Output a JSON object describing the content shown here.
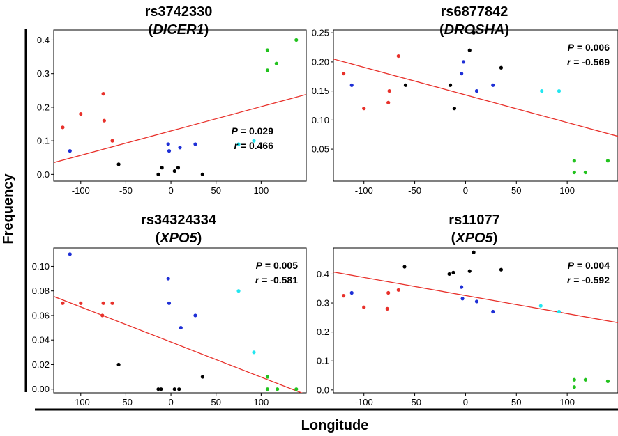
{
  "figure": {
    "xlabel": "Longitude",
    "ylabel": "Frequency"
  },
  "colors": {
    "red": "#e8312b",
    "blue": "#1e2fd6",
    "black": "#000000",
    "cyan": "#22e6f0",
    "green": "#22c21e",
    "fit": "#e8312b"
  },
  "chart_data": [
    {
      "type": "scatter",
      "title": "rs3742330",
      "gene": "DICER1",
      "p_label": "P",
      "p_value": "= 0.029",
      "r_label": "r",
      "r_value": "= 0.466",
      "stats_position": "bottom-right",
      "xlim": [
        -130,
        150
      ],
      "ylim": [
        -0.02,
        0.43
      ],
      "xticks": [
        -100,
        -50,
        0,
        50,
        100
      ],
      "xtick_labels": [
        "-100",
        "-50",
        "0",
        "50",
        "100"
      ],
      "yticks": [
        0,
        0.1,
        0.2,
        0.3,
        0.4
      ],
      "ytick_labels": [
        "0.0",
        "0.1",
        "0.2",
        "0.3",
        "0.4"
      ],
      "fit_line": [
        [
          -130,
          0.035
        ],
        [
          150,
          0.238
        ]
      ],
      "points": [
        {
          "x": -120,
          "y": 0.14,
          "c": "red"
        },
        {
          "x": -100,
          "y": 0.18,
          "c": "red"
        },
        {
          "x": -75,
          "y": 0.24,
          "c": "red"
        },
        {
          "x": -74,
          "y": 0.16,
          "c": "red"
        },
        {
          "x": -65,
          "y": 0.1,
          "c": "red"
        },
        {
          "x": -112,
          "y": 0.07,
          "c": "blue"
        },
        {
          "x": -3,
          "y": 0.09,
          "c": "blue"
        },
        {
          "x": -2,
          "y": 0.07,
          "c": "blue"
        },
        {
          "x": 10,
          "y": 0.08,
          "c": "blue"
        },
        {
          "x": 27,
          "y": 0.09,
          "c": "blue"
        },
        {
          "x": -58,
          "y": 0.03,
          "c": "black"
        },
        {
          "x": -14,
          "y": 0.0,
          "c": "black"
        },
        {
          "x": -10,
          "y": 0.02,
          "c": "black"
        },
        {
          "x": 4,
          "y": 0.01,
          "c": "black"
        },
        {
          "x": 8,
          "y": 0.02,
          "c": "black"
        },
        {
          "x": 35,
          "y": 0.0,
          "c": "black"
        },
        {
          "x": 75,
          "y": 0.09,
          "c": "cyan"
        },
        {
          "x": 92,
          "y": 0.1,
          "c": "cyan"
        },
        {
          "x": 107,
          "y": 0.37,
          "c": "green"
        },
        {
          "x": 107,
          "y": 0.31,
          "c": "green"
        },
        {
          "x": 117,
          "y": 0.33,
          "c": "green"
        },
        {
          "x": 139,
          "y": 0.4,
          "c": "green"
        }
      ]
    },
    {
      "type": "scatter",
      "title": "rs6877842",
      "gene": "DROSHA",
      "p_label": "P",
      "p_value": "= 0.006",
      "r_label": "r",
      "r_value": "= -0.569",
      "stats_position": "top-right",
      "xlim": [
        -130,
        150
      ],
      "ylim": [
        -0.005,
        0.255
      ],
      "xticks": [
        -100,
        -50,
        0,
        50,
        100
      ],
      "xtick_labels": [
        "-100",
        "-50",
        "0",
        "50",
        "100"
      ],
      "yticks": [
        0.05,
        0.1,
        0.15,
        0.2,
        0.25
      ],
      "ytick_labels": [
        "0.05",
        "0.10",
        "0.15",
        "0.20",
        "0.25"
      ],
      "fit_line": [
        [
          -130,
          0.205
        ],
        [
          150,
          0.072
        ]
      ],
      "points": [
        {
          "x": -120,
          "y": 0.18,
          "c": "red"
        },
        {
          "x": -100,
          "y": 0.12,
          "c": "red"
        },
        {
          "x": -75,
          "y": 0.15,
          "c": "red"
        },
        {
          "x": -76,
          "y": 0.13,
          "c": "red"
        },
        {
          "x": -66,
          "y": 0.21,
          "c": "red"
        },
        {
          "x": -112,
          "y": 0.16,
          "c": "blue"
        },
        {
          "x": -4,
          "y": 0.18,
          "c": "blue"
        },
        {
          "x": -2,
          "y": 0.2,
          "c": "blue"
        },
        {
          "x": 11,
          "y": 0.15,
          "c": "blue"
        },
        {
          "x": 27,
          "y": 0.16,
          "c": "blue"
        },
        {
          "x": -59,
          "y": 0.16,
          "c": "black"
        },
        {
          "x": -15,
          "y": 0.16,
          "c": "black"
        },
        {
          "x": -11,
          "y": 0.12,
          "c": "black"
        },
        {
          "x": 4,
          "y": 0.22,
          "c": "black"
        },
        {
          "x": 8,
          "y": 0.25,
          "c": "black"
        },
        {
          "x": 35,
          "y": 0.19,
          "c": "black"
        },
        {
          "x": 75,
          "y": 0.15,
          "c": "cyan"
        },
        {
          "x": 92,
          "y": 0.15,
          "c": "cyan"
        },
        {
          "x": 107,
          "y": 0.03,
          "c": "green"
        },
        {
          "x": 107,
          "y": 0.01,
          "c": "green"
        },
        {
          "x": 118,
          "y": 0.01,
          "c": "green"
        },
        {
          "x": 140,
          "y": 0.03,
          "c": "green"
        }
      ]
    },
    {
      "type": "scatter",
      "title": "rs34324334",
      "gene": "XPO5",
      "p_label": "P",
      "p_value": "= 0.005",
      "r_label": "r",
      "r_value": "= -0.581",
      "stats_position": "top-right",
      "xlim": [
        -130,
        150
      ],
      "ylim": [
        -0.003,
        0.115
      ],
      "xticks": [
        -100,
        -50,
        0,
        50,
        100
      ],
      "xtick_labels": [
        "-100",
        "-50",
        "0",
        "50",
        "100"
      ],
      "yticks": [
        0,
        0.02,
        0.04,
        0.06,
        0.08,
        0.1
      ],
      "ytick_labels": [
        "0.00",
        "0.02",
        "0.04",
        "0.06",
        "0.08",
        "0.10"
      ],
      "fit_line": [
        [
          -130,
          0.0755
        ],
        [
          150,
          -0.0045
        ]
      ],
      "points": [
        {
          "x": -120,
          "y": 0.07,
          "c": "red"
        },
        {
          "x": -100,
          "y": 0.07,
          "c": "red"
        },
        {
          "x": -75,
          "y": 0.07,
          "c": "red"
        },
        {
          "x": -76,
          "y": 0.06,
          "c": "red"
        },
        {
          "x": -65,
          "y": 0.07,
          "c": "red"
        },
        {
          "x": -112,
          "y": 0.11,
          "c": "blue"
        },
        {
          "x": -3,
          "y": 0.09,
          "c": "blue"
        },
        {
          "x": -2,
          "y": 0.07,
          "c": "blue"
        },
        {
          "x": 11,
          "y": 0.05,
          "c": "blue"
        },
        {
          "x": 27,
          "y": 0.06,
          "c": "blue"
        },
        {
          "x": -58,
          "y": 0.02,
          "c": "black"
        },
        {
          "x": -14,
          "y": 0.0,
          "c": "black"
        },
        {
          "x": -11,
          "y": 0.0,
          "c": "black"
        },
        {
          "x": 4,
          "y": 0.0,
          "c": "black"
        },
        {
          "x": 9,
          "y": 0.0,
          "c": "black"
        },
        {
          "x": 35,
          "y": 0.01,
          "c": "black"
        },
        {
          "x": 75,
          "y": 0.08,
          "c": "cyan"
        },
        {
          "x": 92,
          "y": 0.03,
          "c": "cyan"
        },
        {
          "x": 107,
          "y": 0.01,
          "c": "green"
        },
        {
          "x": 107,
          "y": 0.0,
          "c": "green"
        },
        {
          "x": 118,
          "y": 0.0,
          "c": "green"
        },
        {
          "x": 139,
          "y": 0.0,
          "c": "green"
        }
      ]
    },
    {
      "type": "scatter",
      "title": "rs11077",
      "gene": "XPO5",
      "p_label": "P",
      "p_value": "= 0.004",
      "r_label": "r",
      "r_value": "= -0.592",
      "stats_position": "top-right",
      "xlim": [
        -130,
        150
      ],
      "ylim": [
        -0.01,
        0.49
      ],
      "xticks": [
        -100,
        -50,
        0,
        50,
        100
      ],
      "xtick_labels": [
        "-100",
        "-50",
        "0",
        "50",
        "100"
      ],
      "yticks": [
        0,
        0.1,
        0.2,
        0.3,
        0.4
      ],
      "ytick_labels": [
        "0.0",
        "0.1",
        "0.2",
        "0.3",
        "0.4"
      ],
      "fit_line": [
        [
          -130,
          0.407
        ],
        [
          150,
          0.232
        ]
      ],
      "points": [
        {
          "x": -120,
          "y": 0.325,
          "c": "red"
        },
        {
          "x": -100,
          "y": 0.285,
          "c": "red"
        },
        {
          "x": -76,
          "y": 0.335,
          "c": "red"
        },
        {
          "x": -77,
          "y": 0.28,
          "c": "red"
        },
        {
          "x": -66,
          "y": 0.345,
          "c": "red"
        },
        {
          "x": -112,
          "y": 0.335,
          "c": "blue"
        },
        {
          "x": -4,
          "y": 0.355,
          "c": "blue"
        },
        {
          "x": -3,
          "y": 0.315,
          "c": "blue"
        },
        {
          "x": 11,
          "y": 0.305,
          "c": "blue"
        },
        {
          "x": 27,
          "y": 0.27,
          "c": "blue"
        },
        {
          "x": -60,
          "y": 0.425,
          "c": "black"
        },
        {
          "x": -16,
          "y": 0.4,
          "c": "black"
        },
        {
          "x": -12,
          "y": 0.405,
          "c": "black"
        },
        {
          "x": 4,
          "y": 0.41,
          "c": "black"
        },
        {
          "x": 8,
          "y": 0.475,
          "c": "black"
        },
        {
          "x": 35,
          "y": 0.415,
          "c": "black"
        },
        {
          "x": 74,
          "y": 0.29,
          "c": "cyan"
        },
        {
          "x": 92,
          "y": 0.27,
          "c": "cyan"
        },
        {
          "x": 107,
          "y": 0.035,
          "c": "green"
        },
        {
          "x": 107,
          "y": 0.01,
          "c": "green"
        },
        {
          "x": 118,
          "y": 0.035,
          "c": "green"
        },
        {
          "x": 140,
          "y": 0.03,
          "c": "green"
        }
      ]
    }
  ]
}
